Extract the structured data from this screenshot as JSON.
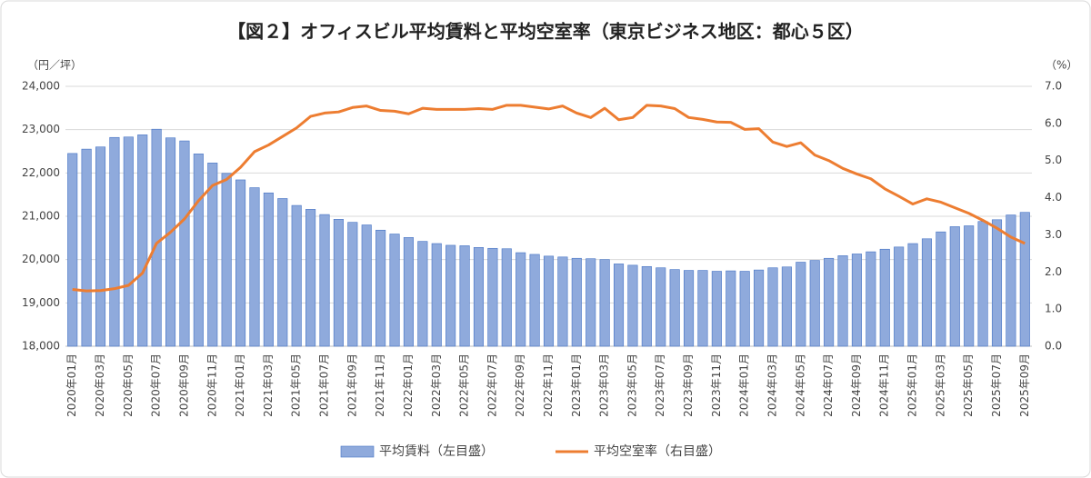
{
  "chart_data": {
    "type": "bar+line",
    "title": "【図２】オフィスビル平均賃料と平均空室率（東京ビジネス地区：都心５区）",
    "y_label": "（円／坪）",
    "y2_label": "（%）",
    "categories": [
      "2020年01月",
      null,
      "2020年03月",
      null,
      "2020年05月",
      null,
      "2020年07月",
      null,
      "2020年09月",
      null,
      "2020年11月",
      null,
      "2021年01月",
      null,
      "2021年03月",
      null,
      "2021年05月",
      null,
      "2021年07月",
      null,
      "2021年09月",
      null,
      "2021年11月",
      null,
      "2022年01月",
      null,
      "2022年03月",
      null,
      "2022年05月",
      null,
      "2022年07月",
      null,
      "2022年09月",
      null,
      "2022年11月",
      null,
      "2023年01月",
      null,
      "2023年03月",
      null,
      "2023年05月",
      null,
      "2023年07月",
      null,
      "2023年09月",
      null,
      "2023年11月",
      null,
      "2024年01月",
      null,
      "2024年03月",
      null,
      "2024年05月",
      null,
      "2024年07月",
      null,
      "2024年09月",
      null,
      "2024年11月",
      null,
      "2025年01月",
      null,
      "2025年03月",
      null,
      "2025年05月",
      null,
      "2025年07月",
      null,
      "2025年09月"
    ],
    "series": [
      {
        "name": "平均賃料（左目盛）",
        "type": "bar",
        "color": "#8faadc",
        "values": [
          22450,
          22550,
          22600,
          22820,
          22830,
          22880,
          23010,
          22810,
          22740,
          22440,
          22230,
          21990,
          21840,
          21660,
          21540,
          21410,
          21250,
          21160,
          21040,
          20930,
          20860,
          20800,
          20680,
          20590,
          20510,
          20420,
          20370,
          20330,
          20320,
          20280,
          20260,
          20250,
          20160,
          20120,
          20080,
          20060,
          20030,
          20020,
          20000,
          19900,
          19870,
          19840,
          19810,
          19770,
          19750,
          19750,
          19730,
          19740,
          19730,
          19760,
          19810,
          19830,
          19940,
          19980,
          20030,
          20090,
          20130,
          20180,
          20240,
          20290,
          20370,
          20480,
          20640,
          20760,
          20780,
          20880,
          20920,
          21030,
          21090
        ]
      },
      {
        "name": "平均空室率（右目盛）",
        "type": "line",
        "axis": "y2",
        "color": "#ed7d31",
        "values": [
          1.53,
          1.49,
          1.5,
          1.55,
          1.64,
          1.97,
          2.77,
          3.07,
          3.43,
          3.92,
          4.33,
          4.49,
          4.82,
          5.24,
          5.42,
          5.65,
          5.88,
          6.19,
          6.28,
          6.31,
          6.43,
          6.47,
          6.35,
          6.33,
          6.26,
          6.41,
          6.38,
          6.38,
          6.38,
          6.4,
          6.38,
          6.49,
          6.49,
          6.44,
          6.39,
          6.47,
          6.28,
          6.16,
          6.41,
          6.1,
          6.16,
          6.49,
          6.47,
          6.4,
          6.16,
          6.11,
          6.04,
          6.03,
          5.84,
          5.86,
          5.5,
          5.38,
          5.48,
          5.15,
          5.0,
          4.79,
          4.64,
          4.51,
          4.24,
          4.04,
          3.83,
          3.97,
          3.88,
          3.73,
          3.58,
          3.39,
          3.18,
          2.94,
          2.77
        ]
      }
    ],
    "ylim": [
      18000,
      24000
    ],
    "yticks": [
      {
        "value": 18000,
        "label": "18,000"
      },
      {
        "value": 19000,
        "label": "19,000"
      },
      {
        "value": 20000,
        "label": "20,000"
      },
      {
        "value": 21000,
        "label": "21,000"
      },
      {
        "value": 22000,
        "label": "22,000"
      },
      {
        "value": 23000,
        "label": "23,000"
      },
      {
        "value": 24000,
        "label": "24,000"
      }
    ],
    "y2lim": [
      0,
      7
    ],
    "y2ticks": [
      {
        "value": 0,
        "label": "0.0"
      },
      {
        "value": 1,
        "label": "1.0"
      },
      {
        "value": 2,
        "label": "2.0"
      },
      {
        "value": 3,
        "label": "3.0"
      },
      {
        "value": 4,
        "label": "4.0"
      },
      {
        "value": 5,
        "label": "5.0"
      },
      {
        "value": 6,
        "label": "6.0"
      },
      {
        "value": 7,
        "label": "7.0"
      }
    ],
    "grid": true,
    "legend": "bottom"
  }
}
